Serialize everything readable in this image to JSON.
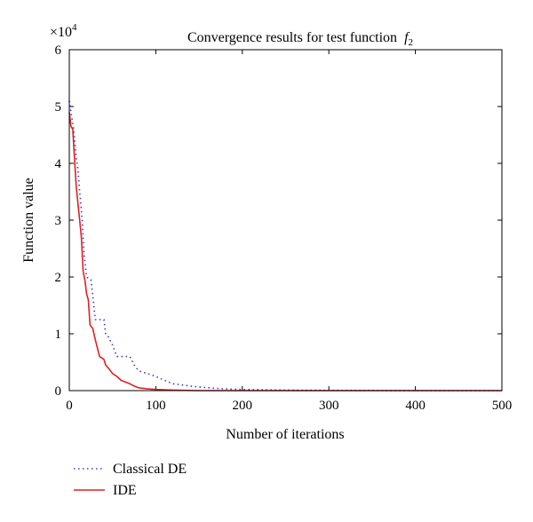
{
  "chart_data": {
    "type": "line",
    "title": "Convergence results for test function",
    "title_symbol": "f",
    "title_subscript": "2",
    "xlabel": "Number of iterations",
    "ylabel": "Function value",
    "y_multiplier": "×10",
    "y_multiplier_exp": "4",
    "xlim": [
      0,
      500
    ],
    "ylim": [
      0,
      6
    ],
    "xticks": [
      0,
      100,
      200,
      300,
      400,
      500
    ],
    "yticks": [
      0,
      1,
      2,
      3,
      4,
      5,
      6
    ],
    "grid": false,
    "legend_position": "bottom-left, below plot",
    "series": [
      {
        "name": "Classical DE",
        "color": "#3a3acf",
        "style": "dotted",
        "points": [
          [
            0,
            5.1
          ],
          [
            2,
            4.9
          ],
          [
            5,
            4.6
          ],
          [
            8,
            4.1
          ],
          [
            10,
            3.9
          ],
          [
            12,
            3.5
          ],
          [
            15,
            3.0
          ],
          [
            17,
            2.4
          ],
          [
            20,
            2.0
          ],
          [
            25,
            1.95
          ],
          [
            27,
            1.7
          ],
          [
            30,
            1.25
          ],
          [
            35,
            1.25
          ],
          [
            40,
            1.25
          ],
          [
            42,
            1.0
          ],
          [
            45,
            0.95
          ],
          [
            50,
            0.8
          ],
          [
            55,
            0.6
          ],
          [
            60,
            0.6
          ],
          [
            70,
            0.6
          ],
          [
            75,
            0.45
          ],
          [
            80,
            0.35
          ],
          [
            90,
            0.3
          ],
          [
            100,
            0.25
          ],
          [
            110,
            0.18
          ],
          [
            120,
            0.12
          ],
          [
            140,
            0.08
          ],
          [
            160,
            0.05
          ],
          [
            180,
            0.03
          ],
          [
            200,
            0.02
          ],
          [
            250,
            0.01
          ],
          [
            300,
            0.005
          ],
          [
            400,
            0.0
          ],
          [
            500,
            0.0
          ]
        ]
      },
      {
        "name": "IDE",
        "color": "#e02020",
        "style": "solid",
        "points": [
          [
            0,
            4.9
          ],
          [
            2,
            4.65
          ],
          [
            4,
            4.6
          ],
          [
            6,
            4.1
          ],
          [
            8,
            3.6
          ],
          [
            10,
            3.3
          ],
          [
            12,
            3.0
          ],
          [
            14,
            2.7
          ],
          [
            16,
            2.1
          ],
          [
            18,
            1.95
          ],
          [
            20,
            1.7
          ],
          [
            22,
            1.6
          ],
          [
            24,
            1.15
          ],
          [
            27,
            1.1
          ],
          [
            30,
            0.9
          ],
          [
            35,
            0.6
          ],
          [
            40,
            0.55
          ],
          [
            42,
            0.45
          ],
          [
            45,
            0.4
          ],
          [
            50,
            0.3
          ],
          [
            55,
            0.25
          ],
          [
            60,
            0.18
          ],
          [
            65,
            0.15
          ],
          [
            70,
            0.12
          ],
          [
            75,
            0.08
          ],
          [
            80,
            0.05
          ],
          [
            90,
            0.03
          ],
          [
            100,
            0.02
          ],
          [
            120,
            0.01
          ],
          [
            150,
            0.0
          ],
          [
            500,
            0.0
          ]
        ]
      }
    ]
  }
}
